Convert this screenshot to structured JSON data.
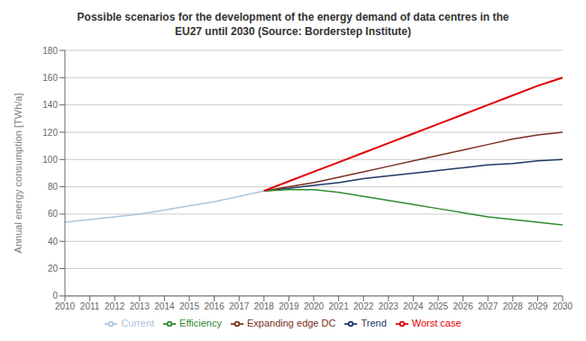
{
  "chart_data": {
    "type": "line",
    "title": "Possible scenarios for the development of the energy demand of data centres in the\nEU27 until 2030 (Source: Borderstep Institute)",
    "ylabel": "Annual energy consumption [TWh/a]",
    "x": [
      2010,
      2011,
      2012,
      2013,
      2014,
      2015,
      2016,
      2017,
      2018,
      2019,
      2020,
      2021,
      2022,
      2023,
      2024,
      2025,
      2026,
      2027,
      2028,
      2029,
      2030
    ],
    "series": [
      {
        "name": "Current",
        "color": "#aac4df",
        "values": [
          54,
          56,
          58,
          60,
          63,
          66,
          69,
          73,
          77,
          null,
          null,
          null,
          null,
          null,
          null,
          null,
          null,
          null,
          null,
          null,
          null
        ]
      },
      {
        "name": "Trend",
        "color": "#1f3864",
        "values": [
          null,
          null,
          null,
          null,
          null,
          null,
          null,
          null,
          77,
          79,
          81,
          83,
          86,
          88,
          90,
          92,
          94,
          96,
          97,
          99,
          100
        ]
      },
      {
        "name": "Expanding edge DC",
        "color": "#7b3020",
        "values": [
          null,
          null,
          null,
          null,
          null,
          null,
          null,
          null,
          77,
          80,
          83,
          87,
          91,
          95,
          99,
          103,
          107,
          111,
          115,
          118,
          120
        ]
      },
      {
        "name": "Efficiency",
        "color": "#2e8b2e",
        "values": [
          null,
          null,
          null,
          null,
          null,
          null,
          null,
          null,
          77,
          78,
          78,
          76,
          73,
          70,
          67,
          64,
          61,
          58,
          56,
          54,
          52
        ]
      },
      {
        "name": "Worst case",
        "color": "#e00000",
        "values": [
          null,
          null,
          null,
          null,
          null,
          null,
          null,
          null,
          77,
          84,
          91,
          98,
          105,
          112,
          119,
          126,
          133,
          140,
          147,
          154,
          160
        ]
      }
    ],
    "xlim": [
      2010,
      2030
    ],
    "ylim": [
      0,
      180
    ],
    "xticks": [
      2010,
      2011,
      2012,
      2013,
      2014,
      2015,
      2016,
      2017,
      2018,
      2019,
      2020,
      2021,
      2022,
      2023,
      2024,
      2025,
      2026,
      2027,
      2028,
      2029,
      2030
    ],
    "yticks": [
      0,
      20,
      40,
      60,
      80,
      100,
      120,
      140,
      160,
      180
    ],
    "grid": true,
    "legend": "bottom"
  }
}
